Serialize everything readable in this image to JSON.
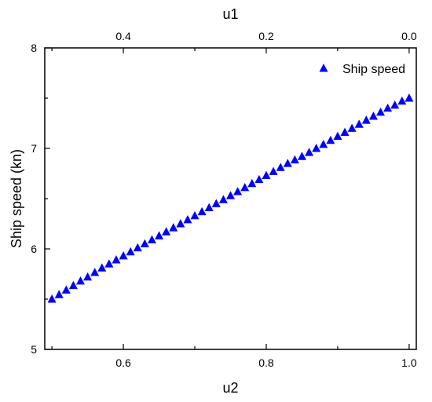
{
  "chart_data": {
    "type": "scatter",
    "x_bottom": {
      "label": "u2",
      "range": [
        0.49,
        1.01
      ],
      "ticks": [
        0.6,
        0.8,
        1.0
      ],
      "tick_labels": [
        "0.6",
        "0.8",
        "1.0"
      ]
    },
    "x_top": {
      "label": "u1",
      "range": [
        0.51,
        -0.01
      ],
      "ticks": [
        0.4,
        0.2,
        0.0
      ],
      "tick_labels": [
        "0.4",
        "0.2",
        "0.0"
      ]
    },
    "y": {
      "label": "Ship speed (kn)",
      "range": [
        5,
        8
      ],
      "ticks": [
        5,
        6,
        7,
        8
      ],
      "tick_labels": [
        "5",
        "6",
        "7",
        "8"
      ]
    },
    "grid": false,
    "legend_position": "top-right",
    "series": [
      {
        "name": "Ship speed",
        "marker": "triangle",
        "color": "#0000ff",
        "x": [
          0.5,
          0.51,
          0.52,
          0.53,
          0.54,
          0.55,
          0.56,
          0.57,
          0.58,
          0.59,
          0.6,
          0.61,
          0.62,
          0.63,
          0.64,
          0.65,
          0.66,
          0.67,
          0.68,
          0.69,
          0.7,
          0.71,
          0.72,
          0.73,
          0.74,
          0.75,
          0.76,
          0.77,
          0.78,
          0.79,
          0.8,
          0.81,
          0.82,
          0.83,
          0.84,
          0.85,
          0.86,
          0.87,
          0.88,
          0.89,
          0.9,
          0.91,
          0.92,
          0.93,
          0.94,
          0.95,
          0.96,
          0.97,
          0.98,
          0.99,
          1.0
        ],
        "y": [
          5.5,
          5.545,
          5.59,
          5.635,
          5.68,
          5.72,
          5.765,
          5.81,
          5.85,
          5.89,
          5.93,
          5.97,
          6.01,
          6.05,
          6.09,
          6.13,
          6.17,
          6.21,
          6.25,
          6.29,
          6.33,
          6.37,
          6.41,
          6.45,
          6.49,
          6.53,
          6.57,
          6.61,
          6.65,
          6.69,
          6.73,
          6.77,
          6.81,
          6.85,
          6.885,
          6.92,
          6.96,
          7.0,
          7.04,
          7.08,
          7.12,
          7.16,
          7.2,
          7.24,
          7.28,
          7.32,
          7.36,
          7.4,
          7.43,
          7.47,
          7.5
        ]
      }
    ]
  }
}
